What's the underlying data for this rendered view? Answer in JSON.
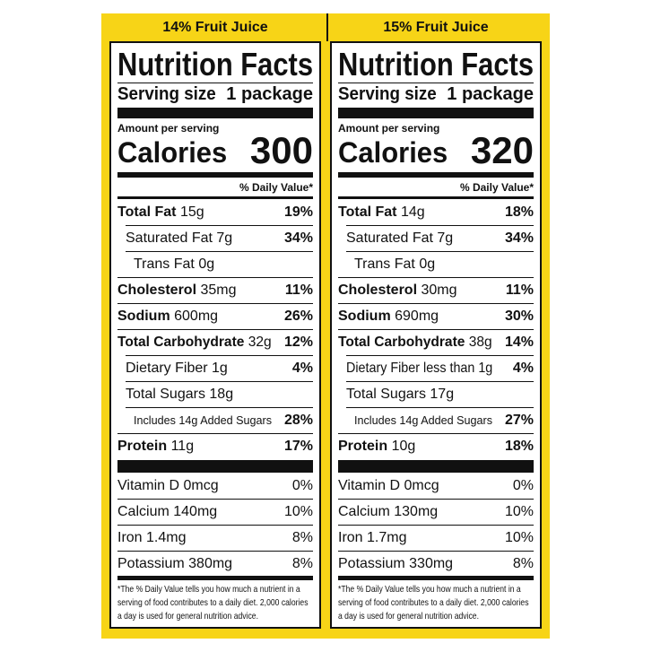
{
  "panels": [
    {
      "header": "14% Fruit Juice",
      "title": "Nutrition Facts",
      "serving_label": "Serving size",
      "serving_size": "1 package",
      "amount_per_serving": "Amount per serving",
      "calories_label": "Calories",
      "calories": "300",
      "daily_value_header": "% Daily Value*",
      "nutrients": [
        {
          "name": "Total Fat",
          "amount": "15g",
          "dv": "19%"
        },
        {
          "name": "Saturated Fat",
          "amount": "7g",
          "dv": "34%"
        },
        {
          "name": "Trans Fat",
          "amount": "0g"
        },
        {
          "name": "Cholesterol",
          "amount": "35mg",
          "dv": "11%"
        },
        {
          "name": "Sodium",
          "amount": "600mg",
          "dv": "26%"
        },
        {
          "name": "Total Carbohydrate",
          "amount": "32g",
          "dv": "12%"
        },
        {
          "name": "Dietary Fiber",
          "amount": "1g",
          "dv": "4%"
        },
        {
          "name": "Total Sugars",
          "amount": "18g"
        },
        {
          "name": "Includes 14g Added Sugars",
          "dv": "28%"
        },
        {
          "name": "Protein",
          "amount": "11g",
          "dv": "17%"
        }
      ],
      "vitamins": [
        {
          "name": "Vitamin D",
          "amount": "0mcg",
          "dv": "0%"
        },
        {
          "name": "Calcium",
          "amount": "140mg",
          "dv": "10%"
        },
        {
          "name": "Iron",
          "amount": "1.4mg",
          "dv": "8%"
        },
        {
          "name": "Potassium",
          "amount": "380mg",
          "dv": "8%"
        }
      ],
      "footnote": "*The % Daily Value tells you how much a nutrient in a serving of food contributes to a daily diet. 2,000 calories a day is used for general nutrition advice."
    },
    {
      "header": "15% Fruit Juice",
      "title": "Nutrition Facts",
      "serving_label": "Serving size",
      "serving_size": "1 package",
      "amount_per_serving": "Amount per serving",
      "calories_label": "Calories",
      "calories": "320",
      "daily_value_header": "% Daily Value*",
      "nutrients": [
        {
          "name": "Total Fat",
          "amount": "14g",
          "dv": "18%"
        },
        {
          "name": "Saturated Fat",
          "amount": "7g",
          "dv": "34%"
        },
        {
          "name": "Trans Fat",
          "amount": "0g"
        },
        {
          "name": "Cholesterol",
          "amount": "30mg",
          "dv": "11%"
        },
        {
          "name": "Sodium",
          "amount": "690mg",
          "dv": "30%"
        },
        {
          "name": "Total Carbohydrate",
          "amount": "38g",
          "dv": "14%"
        },
        {
          "name": "Dietary Fiber",
          "amount": "less than 1g",
          "dv": "4%"
        },
        {
          "name": "Total Sugars",
          "amount": "17g"
        },
        {
          "name": "Includes 14g Added Sugars",
          "dv": "27%"
        },
        {
          "name": "Protein",
          "amount": "10g",
          "dv": "18%"
        }
      ],
      "vitamins": [
        {
          "name": "Vitamin D",
          "amount": "0mcg",
          "dv": "0%"
        },
        {
          "name": "Calcium",
          "amount": "130mg",
          "dv": "10%"
        },
        {
          "name": "Iron",
          "amount": "1.7mg",
          "dv": "10%"
        },
        {
          "name": "Potassium",
          "amount": "330mg",
          "dv": "8%"
        }
      ],
      "footnote": "*The % Daily Value tells you how much a nutrient in a serving of food contributes to a daily diet. 2,000 calories a day is used for general nutrition advice."
    }
  ]
}
